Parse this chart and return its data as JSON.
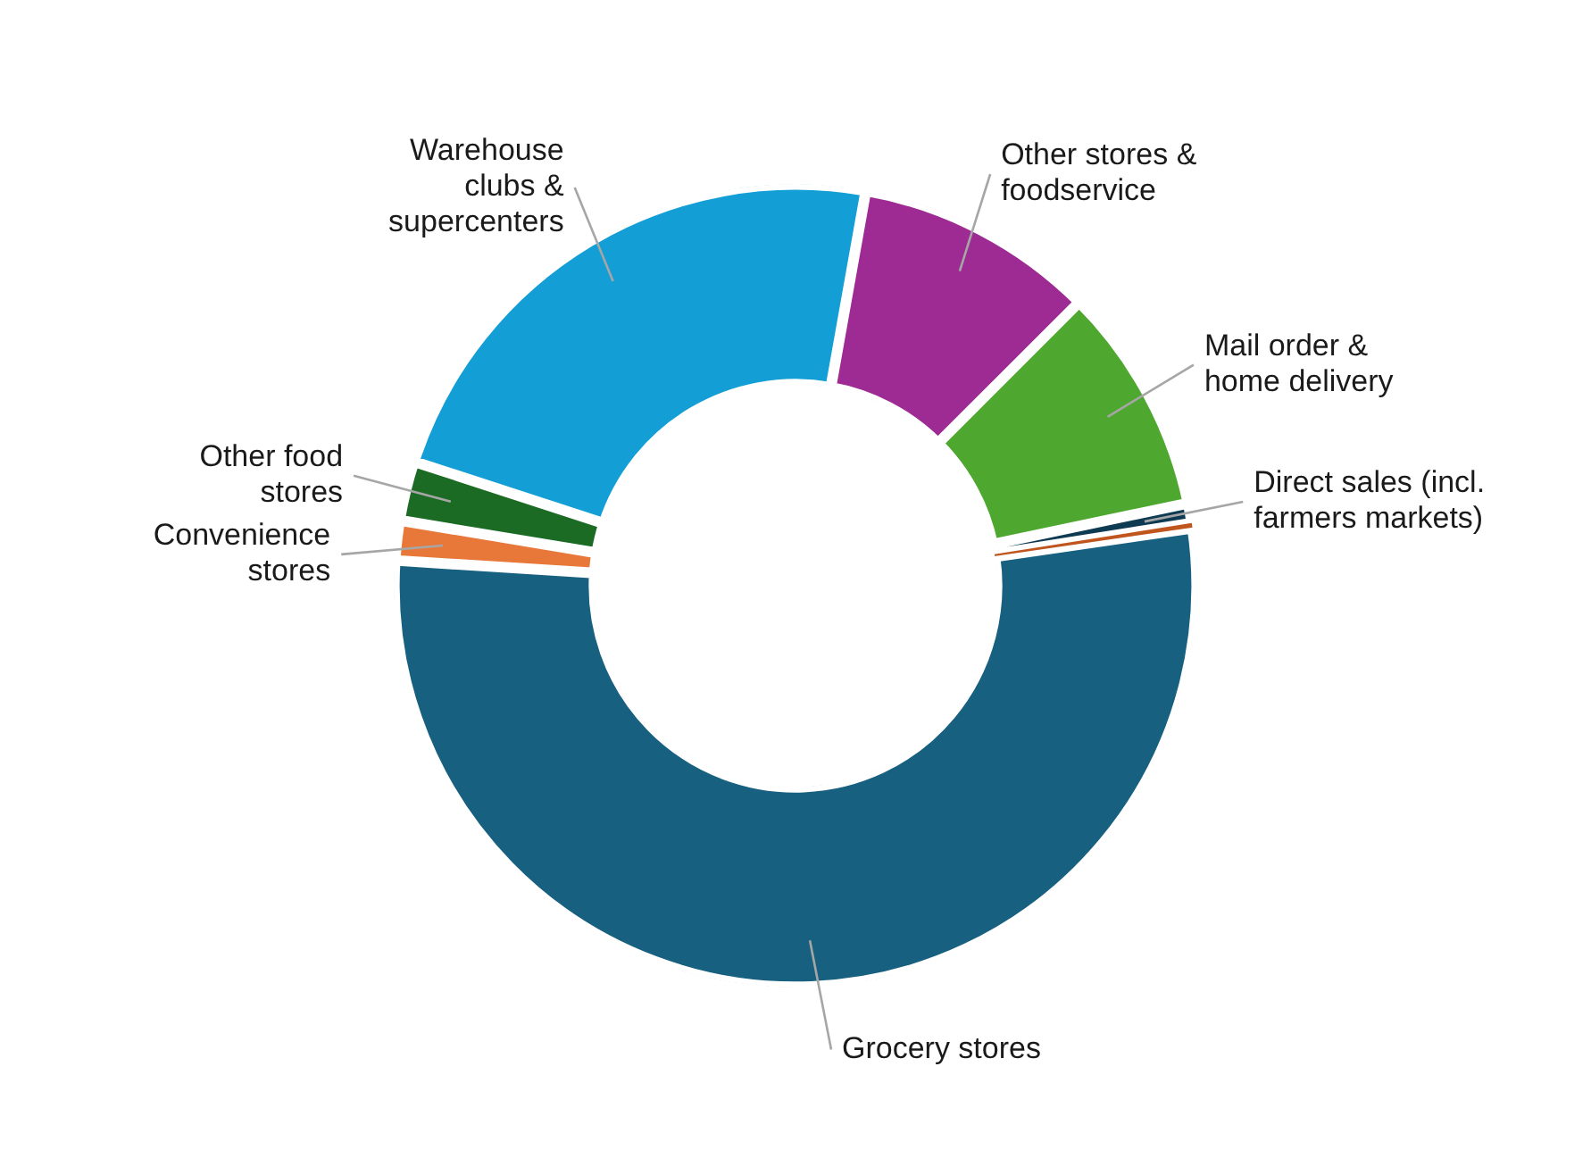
{
  "chart_data": {
    "type": "donut",
    "categories": [
      "Other stores & foodservice",
      "Mail order & home delivery",
      "Direct sales (incl. farmers markets)",
      null,
      "Grocery stores",
      "Convenience stores",
      "Other food stores",
      "Warehouse clubs & supercenters"
    ],
    "values": [
      9.7,
      9.2,
      0.8,
      0.2,
      53.3,
      1.6,
      2.4,
      22.8
    ],
    "colors": [
      "#9e2a93",
      "#4ea72e",
      "#0e3a52",
      "#c0561e",
      "#17607f",
      "#e8783a",
      "#1b6b24",
      "#139fd6"
    ],
    "legend": false
  }
}
